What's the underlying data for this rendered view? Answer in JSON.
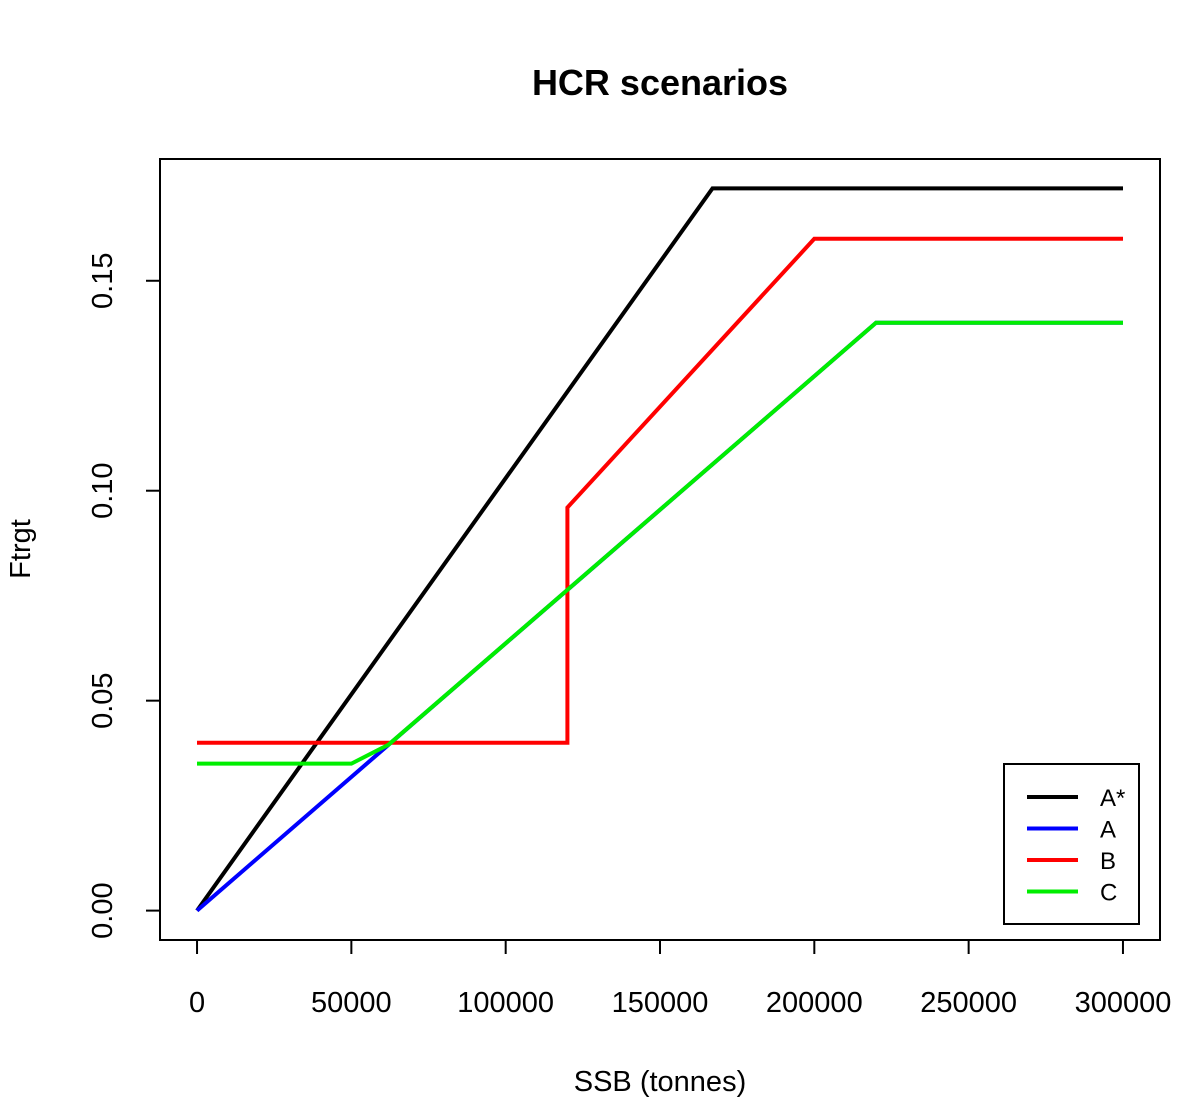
{
  "chart_data": {
    "type": "line",
    "title": "HCR scenarios",
    "xlabel": "SSB (tonnes)",
    "ylabel": "Ftrgt",
    "xlim": [
      -12000,
      312000
    ],
    "ylim": [
      -0.007,
      0.179
    ],
    "x_ticks": [
      0,
      50000,
      100000,
      150000,
      200000,
      250000,
      300000
    ],
    "x_tick_labels": [
      "0",
      "50000",
      "100000",
      "150000",
      "200000",
      "250000",
      "300000"
    ],
    "y_ticks": [
      0.0,
      0.05,
      0.1,
      0.15
    ],
    "y_tick_labels": [
      "0.00",
      "0.05",
      "0.10",
      "0.15"
    ],
    "grid": false,
    "legend_position": "bottom-right",
    "series": [
      {
        "name": "A*",
        "color": "#000000",
        "x": [
          0,
          167000,
          300000
        ],
        "y": [
          0.0,
          0.172,
          0.172
        ]
      },
      {
        "name": "A",
        "color": "#0000ff",
        "x": [
          0,
          220000,
          300000
        ],
        "y": [
          0.0,
          0.14,
          0.14
        ]
      },
      {
        "name": "B",
        "color": "#ff0000",
        "x": [
          0,
          120000,
          120000,
          200000,
          300000
        ],
        "y": [
          0.04,
          0.04,
          0.096,
          0.16,
          0.16
        ]
      },
      {
        "name": "C",
        "color": "#00ee00",
        "x": [
          0,
          50000,
          62000,
          220000,
          300000
        ],
        "y": [
          0.035,
          0.035,
          0.0395,
          0.14,
          0.14
        ]
      }
    ]
  }
}
